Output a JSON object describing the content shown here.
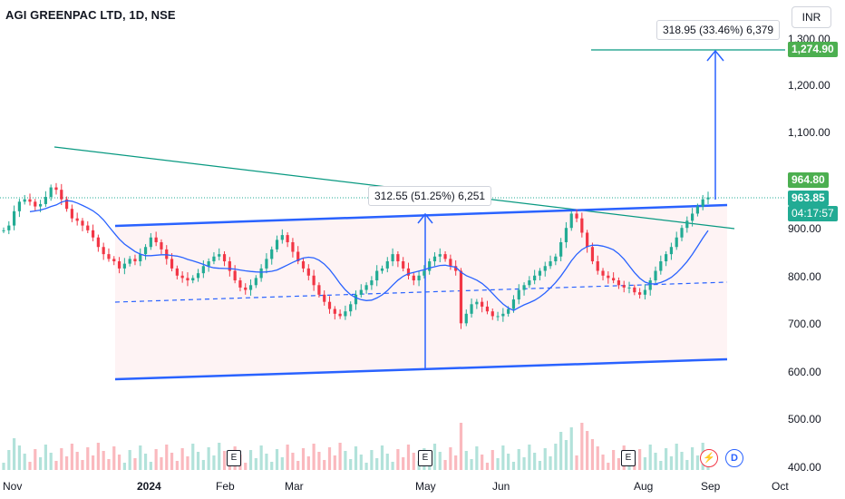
{
  "header": {
    "title": "AGI GREENPAC LTD, 1D, NSE",
    "currency": "INR"
  },
  "price_axis": {
    "ticks": [
      "1,300.00",
      "1,200.00",
      "1,100.00",
      "900.00",
      "800.00",
      "700.00",
      "600.00",
      "500.00",
      "400.00"
    ]
  },
  "price_tags": {
    "target": "1,274.90",
    "high": "964.80",
    "last": "963.85",
    "countdown": "04:17:57"
  },
  "time_axis": {
    "labels": [
      "Nov",
      "2024",
      "Feb",
      "Mar",
      "May",
      "Jun",
      "Aug",
      "Sep",
      "Oct"
    ]
  },
  "measurements": {
    "channel": "312.55 (51.25%) 6,251",
    "target": "318.95 (33.46%) 6,379"
  },
  "events": {
    "earnings": [
      "E",
      "E",
      "E"
    ],
    "split": "⚡",
    "dividend": "D"
  },
  "colors": {
    "up": "#22ab94",
    "down": "#f23645",
    "channel": "#2962ff",
    "trend": "#089981",
    "ma": "#2962ff"
  },
  "chart_data": {
    "type": "candlestick",
    "price_axis_range": [
      400,
      1300
    ],
    "x_axis_range": [
      "Nov",
      "Oct"
    ],
    "series": [
      {
        "values": [
          895,
          905,
          935,
          955,
          960,
          955,
          945,
          950,
          965,
          985,
          980,
          960,
          940,
          920,
          915,
          905,
          895,
          880,
          860,
          845,
          835,
          830,
          815,
          825,
          835,
          830,
          845,
          860,
          880,
          870,
          855,
          835,
          815,
          800,
          795,
          790,
          795,
          805,
          820,
          830,
          840,
          845,
          830,
          810,
          790,
          775,
          770,
          780,
          795,
          815,
          835,
          855,
          875,
          885,
          870,
          850,
          830,
          815,
          800,
          780,
          760,
          745,
          730,
          720,
          715,
          725,
          740,
          760,
          770,
          780,
          790,
          810,
          815,
          830,
          845,
          830,
          815,
          800,
          790,
          800,
          810,
          830,
          840,
          845,
          835,
          820,
          810,
          700,
          720,
          740,
          745,
          735,
          725,
          715,
          715,
          720,
          730,
          750,
          770,
          780,
          790,
          800,
          810,
          820,
          830,
          840,
          870,
          900,
          930,
          920,
          890,
          860,
          830,
          810,
          800,
          795,
          790,
          780,
          775,
          775,
          765,
          760,
          770,
          790,
          810,
          830,
          845,
          860,
          880,
          900,
          915,
          930,
          945,
          960,
          964
        ]
      }
    ]
  }
}
